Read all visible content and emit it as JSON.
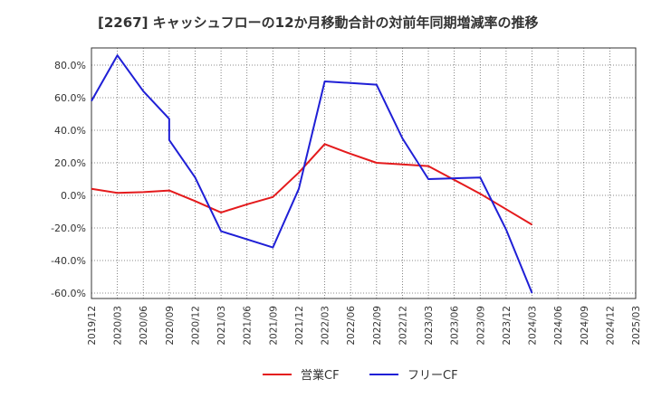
{
  "chart_data": {
    "type": "line",
    "title": "[2267]  キャッシュフローの12か月移動合計の対前年同期増減率の推移",
    "x": [
      "2019/12",
      "2020/03",
      "2020/06",
      "2020/09",
      "2020/12",
      "2021/03",
      "2021/06",
      "2021/09",
      "2021/12",
      "2022/03",
      "2022/06",
      "2022/09",
      "2022/12",
      "2023/03",
      "2023/06",
      "2023/09",
      "2023/12",
      "2024/03",
      "2024/06",
      "2024/09",
      "2024/12",
      "2025/03"
    ],
    "ylim": [
      -63,
      90
    ],
    "yticks": [
      80,
      60,
      40,
      20,
      0,
      -20,
      -40,
      -60
    ],
    "ytick_labels": [
      "80.0%",
      "60.0%",
      "40.0%",
      "20.0%",
      "0.0%",
      "-20.0%",
      "-40.0%",
      "-60.0%"
    ],
    "grid": true,
    "legend_position": "bottom",
    "series": [
      {
        "name": "営業CF",
        "color": "#e41a1c",
        "values": [
          4.0,
          1.5,
          2.0,
          3.0,
          -3.5,
          -10.5,
          -5.5,
          -1.0,
          14.0,
          31.5,
          25.5,
          20.0,
          19.0,
          18.0,
          9.5,
          1.0,
          -8.5,
          -18.0,
          null,
          null,
          null,
          null
        ]
      },
      {
        "name": "フリーCF",
        "color": "#1f1fd6",
        "values": [
          58.0,
          86.0,
          64.0,
          47.0,
          34.0,
          11.0,
          -22.0,
          -27.0,
          -32.0,
          4.0,
          70.0,
          69.0,
          68.0,
          35.0,
          10.0,
          10.5,
          11.0,
          -21.0,
          -60.0,
          null,
          null,
          null
        ],
        "x_index": [
          0,
          1,
          2,
          3,
          3,
          4,
          5,
          6,
          7,
          8,
          9,
          10,
          11,
          12,
          13,
          14,
          15,
          16,
          17,
          18,
          19,
          20
        ]
      }
    ]
  }
}
